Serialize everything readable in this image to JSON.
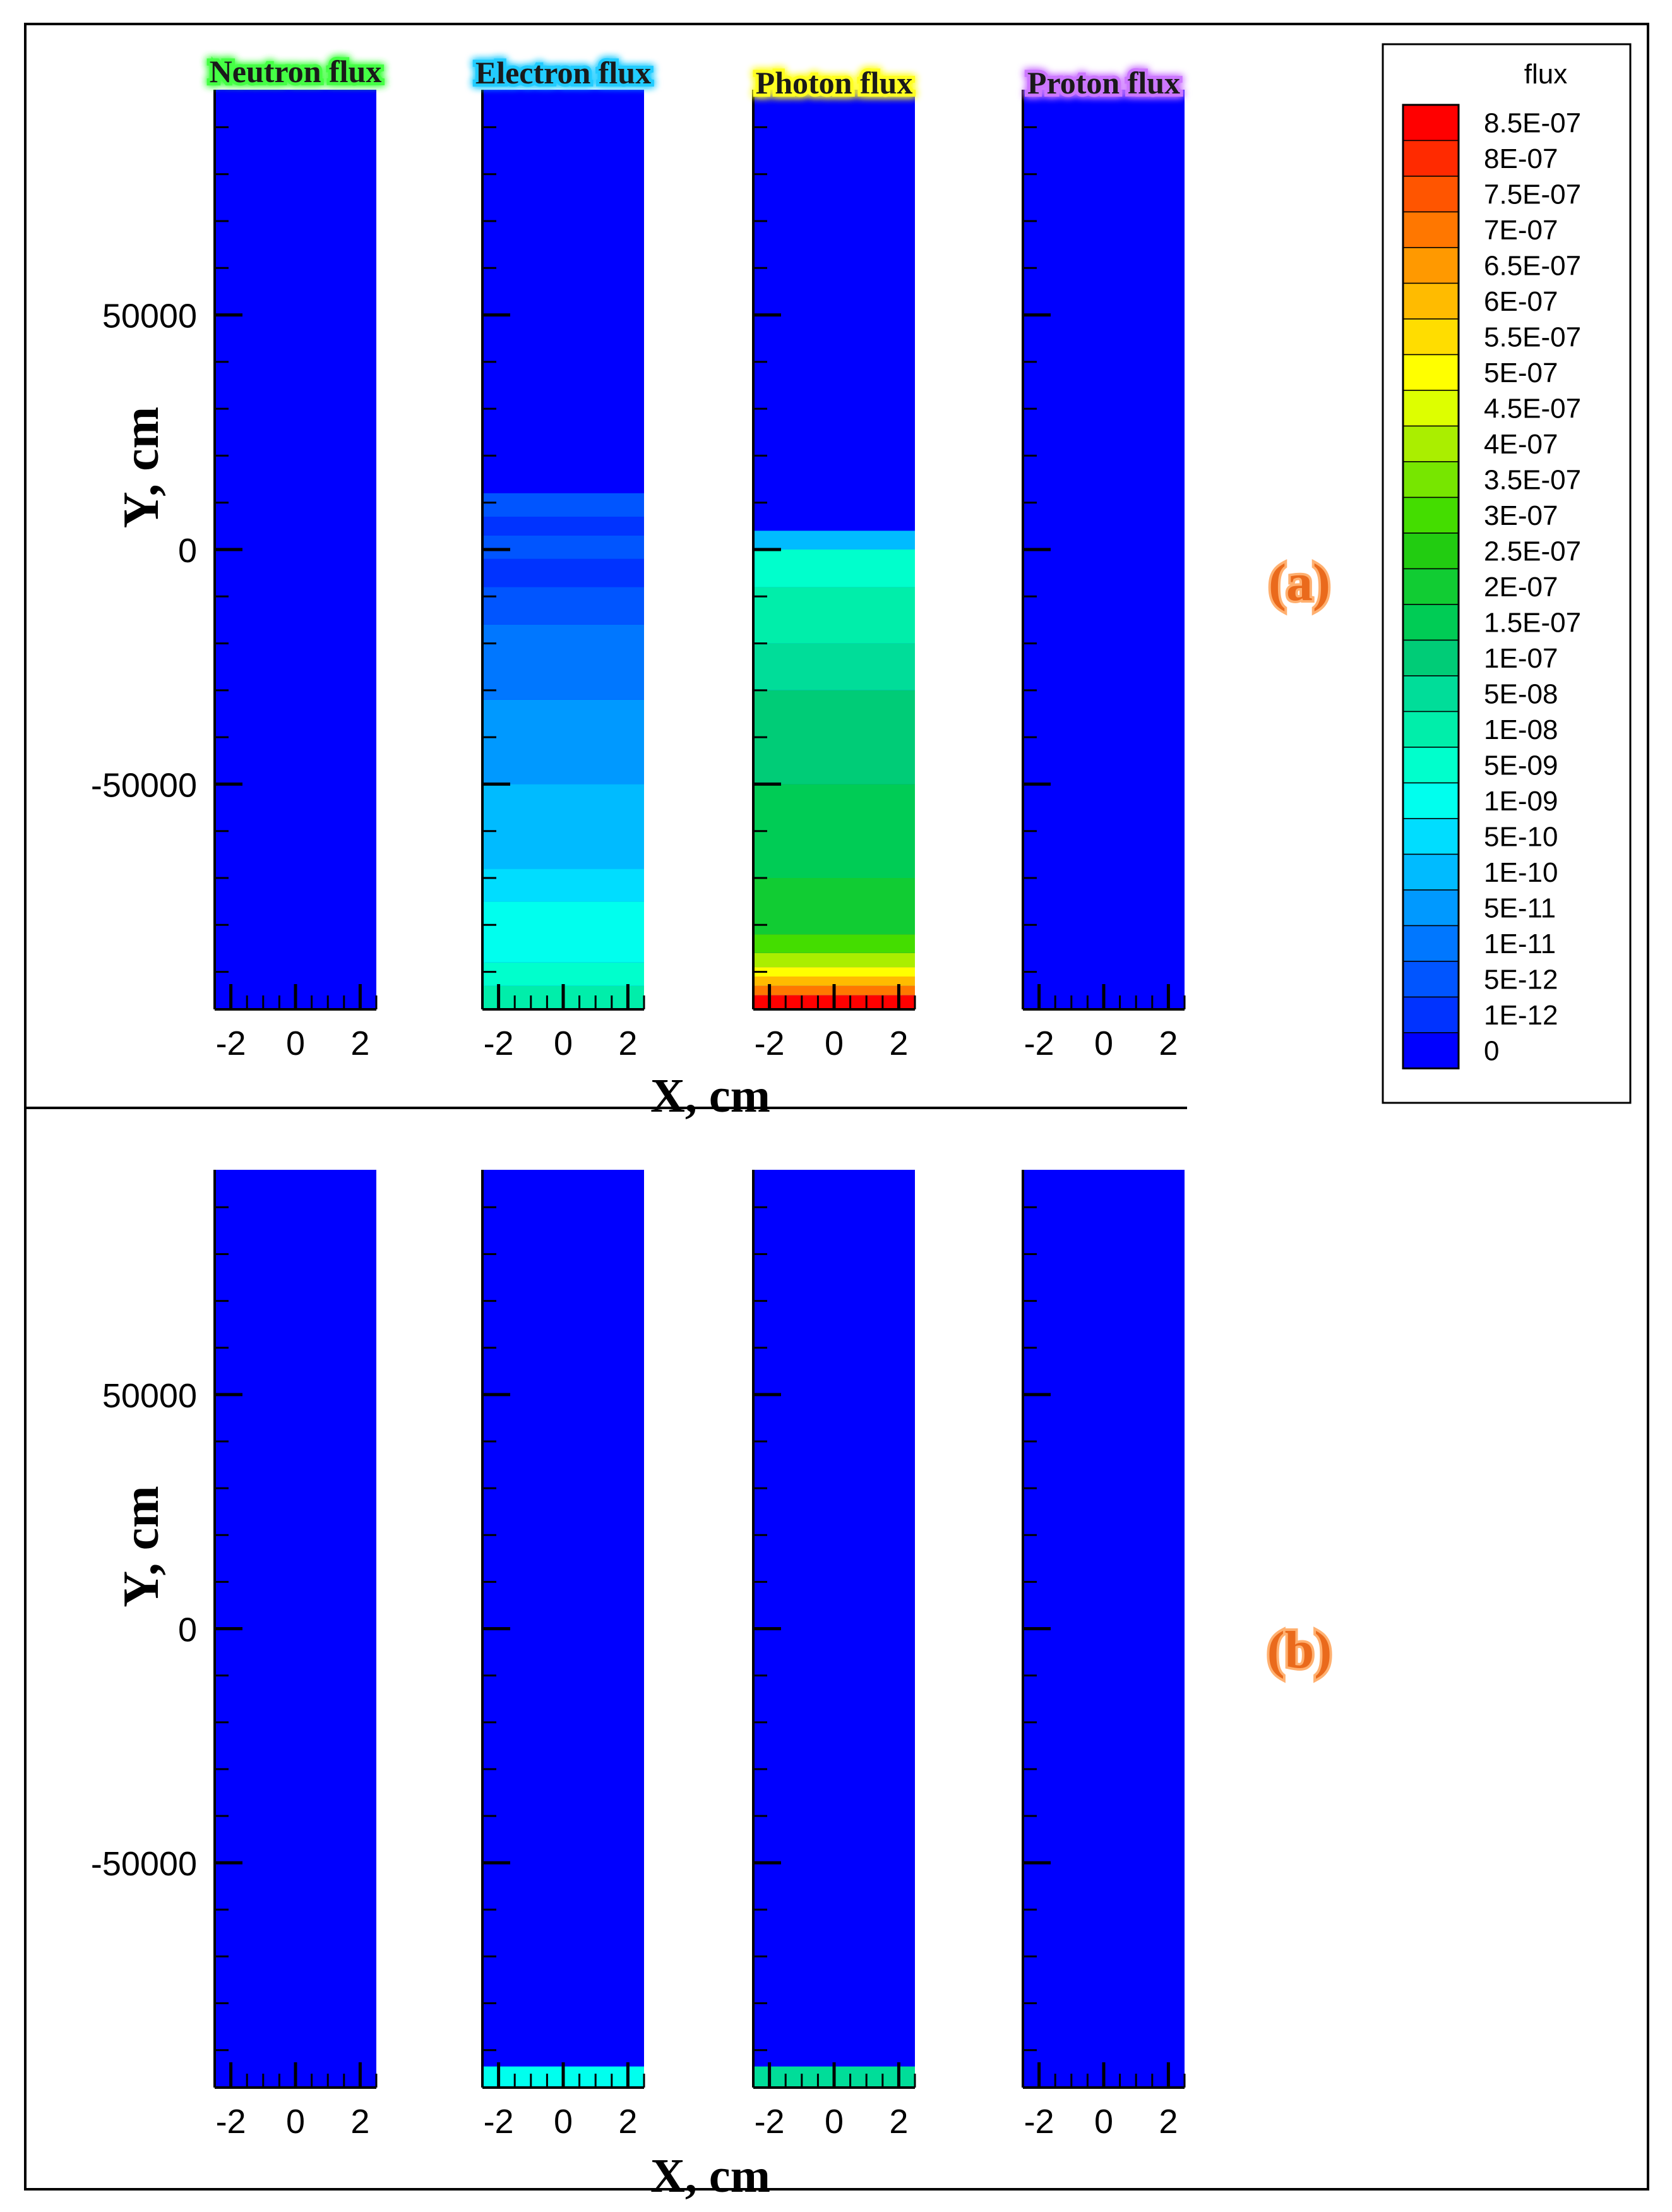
{
  "chart_data": {
    "type": "heatmap",
    "x_ticks": [
      "-2",
      "0",
      "2"
    ],
    "y_ticks": [
      {
        "label": "50000",
        "value": 50000
      },
      {
        "label": "0",
        "value": 0
      },
      {
        "label": "-50000",
        "value": -50000
      }
    ],
    "x_range": [
      -2.5,
      2.5
    ],
    "y_range": [
      -98000,
      98000
    ],
    "x_label": "X, cm",
    "y_label": "Y, cm",
    "colorbar": {
      "title": "flux",
      "levels": [
        "8.5E-07",
        "8E-07",
        "7.5E-07",
        "7E-07",
        "6.5E-07",
        "6E-07",
        "5.5E-07",
        "5E-07",
        "4.5E-07",
        "4E-07",
        "3.5E-07",
        "3E-07",
        "2.5E-07",
        "2E-07",
        "1.5E-07",
        "1E-07",
        "5E-08",
        "1E-08",
        "5E-09",
        "1E-09",
        "5E-10",
        "1E-10",
        "5E-11",
        "1E-11",
        "5E-12",
        "1E-12",
        "0"
      ],
      "colors": [
        "#ff0000",
        "#ff2a00",
        "#ff5500",
        "#ff7700",
        "#ff9900",
        "#ffbb00",
        "#ffdd00",
        "#ffff00",
        "#ddff00",
        "#aaee00",
        "#77e600",
        "#44dd00",
        "#22cc11",
        "#11cc33",
        "#00cc55",
        "#00cc77",
        "#00dd99",
        "#00eeaa",
        "#00ffcc",
        "#00ffee",
        "#00ddff",
        "#00bbff",
        "#0099ff",
        "#0077ff",
        "#0055ff",
        "#0033ff",
        "#0000ff"
      ]
    },
    "column_titles": [
      {
        "text": "Neutron flux",
        "glow": "#44ff44"
      },
      {
        "text": "Electron flux",
        "glow": "#22ccff"
      },
      {
        "text": "Photon flux",
        "glow": "#ffff22"
      },
      {
        "text": "Proton flux",
        "glow": "#cc77ff"
      }
    ],
    "panels": [
      {
        "label": "(a)",
        "columns": [
          {
            "name": "Neutron flux",
            "bands": []
          },
          {
            "name": "Electron flux",
            "bands": [
              {
                "y_from": -98000,
                "y_to": -93000,
                "level": "1E-08"
              },
              {
                "y_from": -93000,
                "y_to": -88000,
                "level": "5E-09"
              },
              {
                "y_from": -88000,
                "y_to": -75000,
                "level": "1E-09"
              },
              {
                "y_from": -75000,
                "y_to": -68000,
                "level": "5E-10"
              },
              {
                "y_from": -68000,
                "y_to": -50000,
                "level": "1E-10"
              },
              {
                "y_from": -50000,
                "y_to": -32000,
                "level": "5E-11"
              },
              {
                "y_from": -32000,
                "y_to": -16000,
                "level": "1E-11"
              },
              {
                "y_from": -16000,
                "y_to": -8000,
                "level": "5E-12"
              },
              {
                "y_from": -8000,
                "y_to": -2000,
                "level": "1E-12"
              },
              {
                "y_from": -2000,
                "y_to": 3000,
                "level": "5E-12"
              },
              {
                "y_from": 3000,
                "y_to": 7000,
                "level": "1E-12"
              },
              {
                "y_from": 7000,
                "y_to": 12000,
                "level": "5E-12"
              }
            ]
          },
          {
            "name": "Photon flux",
            "bands": [
              {
                "y_from": -98000,
                "y_to": -95000,
                "level": "8.5E-07"
              },
              {
                "y_from": -95000,
                "y_to": -93000,
                "level": "7E-07"
              },
              {
                "y_from": -93000,
                "y_to": -91000,
                "level": "6E-07"
              },
              {
                "y_from": -91000,
                "y_to": -89000,
                "level": "5E-07"
              },
              {
                "y_from": -89000,
                "y_to": -86000,
                "level": "4E-07"
              },
              {
                "y_from": -86000,
                "y_to": -82000,
                "level": "3E-07"
              },
              {
                "y_from": -82000,
                "y_to": -70000,
                "level": "2E-07"
              },
              {
                "y_from": -70000,
                "y_to": -50000,
                "level": "1.5E-07"
              },
              {
                "y_from": -50000,
                "y_to": -30000,
                "level": "1E-07"
              },
              {
                "y_from": -30000,
                "y_to": -20000,
                "level": "5E-08"
              },
              {
                "y_from": -20000,
                "y_to": -8000,
                "level": "1E-08"
              },
              {
                "y_from": -8000,
                "y_to": 0,
                "level": "5E-09"
              },
              {
                "y_from": 0,
                "y_to": 4000,
                "level": "1E-10"
              }
            ]
          },
          {
            "name": "Proton flux",
            "bands": []
          }
        ]
      },
      {
        "label": "(b)",
        "columns": [
          {
            "name": "Neutron flux",
            "bands": []
          },
          {
            "name": "Electron flux",
            "bands": [
              {
                "y_from": -98000,
                "y_to": -93500,
                "level": "1E-09"
              }
            ]
          },
          {
            "name": "Photon flux",
            "bands": [
              {
                "y_from": -98000,
                "y_to": -93500,
                "level": "5E-08"
              }
            ]
          },
          {
            "name": "Proton flux",
            "bands": []
          }
        ]
      }
    ]
  }
}
